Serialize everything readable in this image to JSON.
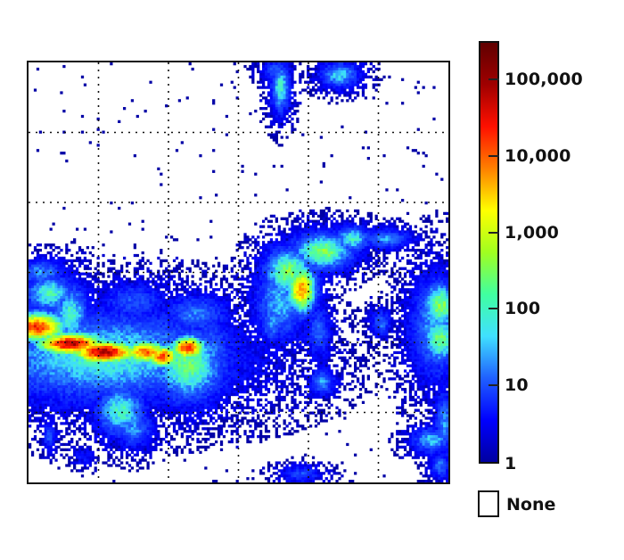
{
  "chart_data": {
    "type": "heatmap",
    "title": "",
    "xlabel": "",
    "ylabel": "",
    "grid": true,
    "grid_divisions": {
      "x": 6,
      "y": 6
    },
    "color_scale": "log",
    "colormap": "jet",
    "colorbar": {
      "position": "right",
      "min": 1,
      "max": 300000,
      "ticks": [
        1,
        10,
        100,
        1000,
        10000,
        100000
      ],
      "tick_labels": [
        "1",
        "10",
        "100",
        "1,000",
        "10,000",
        "100,000"
      ],
      "colors": [
        "#0000a0",
        "#0000ff",
        "#2060ff",
        "#40e0ff",
        "#40ffa0",
        "#a0ff20",
        "#ffff00",
        "#ff8000",
        "#ff1000",
        "#a00000",
        "#600000"
      ]
    },
    "none_legend": {
      "label": "None",
      "color": "#ffffff"
    },
    "hotspots": [
      {
        "region": "left-center band",
        "cx": 0.18,
        "cy": 0.68,
        "peak": 100000,
        "extent": [
          0.0,
          0.42,
          0.56,
          0.78
        ]
      },
      {
        "region": "center cluster",
        "cx": 0.65,
        "cy": 0.53,
        "peak": 30000,
        "extent": [
          0.55,
          0.4,
          0.9,
          0.66
        ]
      },
      {
        "region": "right edge",
        "cx": 0.97,
        "cy": 0.62,
        "peak": 1000,
        "extent": [
          0.9,
          0.52,
          1.0,
          0.75
        ]
      },
      {
        "region": "top center",
        "cx": 0.6,
        "cy": 0.05,
        "peak": 300,
        "extent": [
          0.55,
          0.0,
          0.65,
          0.14
        ]
      },
      {
        "region": "top right",
        "cx": 0.73,
        "cy": 0.03,
        "peak": 300,
        "extent": [
          0.68,
          0.0,
          0.79,
          0.07
        ]
      },
      {
        "region": "lower left",
        "cx": 0.22,
        "cy": 0.84,
        "peak": 1000,
        "extent": [
          0.16,
          0.77,
          0.28,
          0.9
        ]
      },
      {
        "region": "bottom right",
        "cx": 0.96,
        "cy": 0.92,
        "peak": 300,
        "extent": [
          0.88,
          0.82,
          1.0,
          1.0
        ]
      },
      {
        "region": "bottom center",
        "cx": 0.65,
        "cy": 0.98,
        "peak": 30,
        "extent": [
          0.6,
          0.95,
          0.7,
          1.0
        ]
      }
    ]
  }
}
